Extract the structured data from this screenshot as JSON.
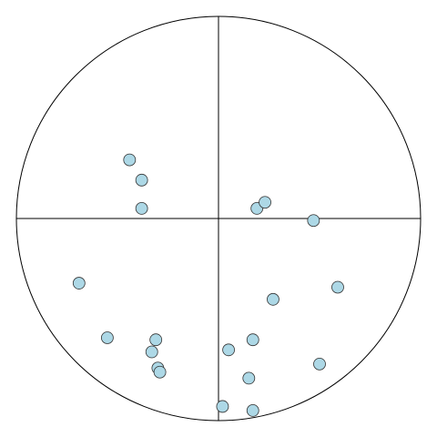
{
  "chart_data": {
    "type": "scatter",
    "x": [
      -0.44,
      -0.38,
      -0.38,
      0.19,
      0.23,
      0.47,
      -0.69,
      0.59,
      0.27,
      -0.55,
      -0.31,
      -0.33,
      0.17,
      0.05,
      -0.3,
      -0.29,
      0.5,
      0.15,
      0.02,
      0.17
    ],
    "y": [
      0.29,
      0.19,
      0.05,
      0.05,
      0.08,
      -0.01,
      -0.32,
      -0.34,
      -0.4,
      -0.59,
      -0.6,
      -0.66,
      -0.6,
      -0.65,
      -0.74,
      -0.76,
      -0.72,
      -0.79,
      -0.93,
      -0.95
    ],
    "xlim": [
      -1,
      1
    ],
    "ylim": [
      -1,
      1
    ],
    "color": "#add8e6"
  }
}
